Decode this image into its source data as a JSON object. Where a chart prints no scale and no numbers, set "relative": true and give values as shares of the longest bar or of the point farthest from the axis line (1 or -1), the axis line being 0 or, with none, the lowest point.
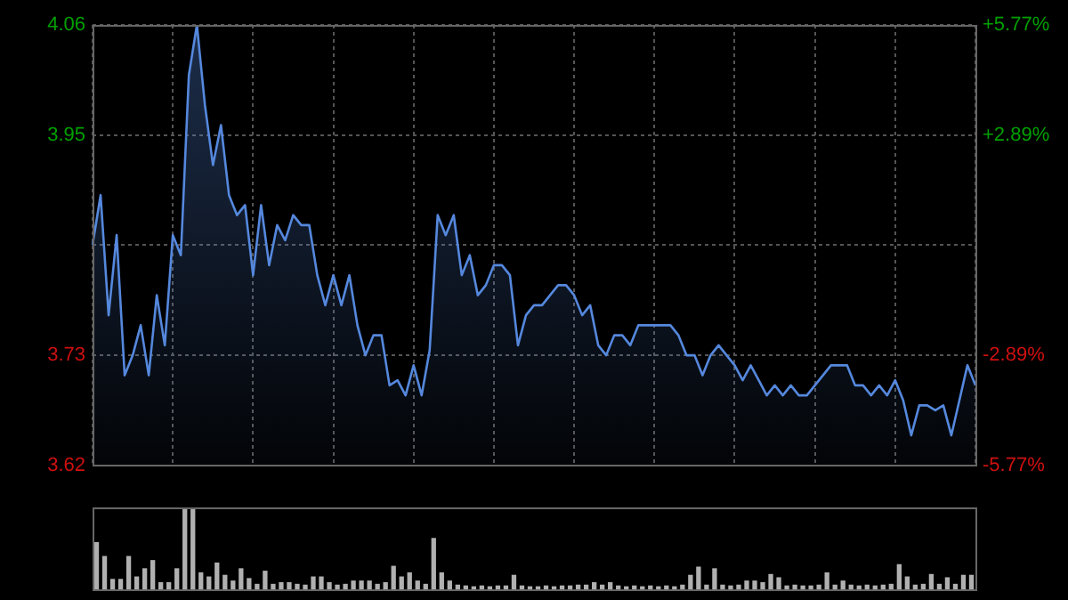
{
  "chart_data": [
    {
      "type": "area",
      "color": "#5588dd",
      "categories": [
        null,
        null,
        null,
        null,
        null,
        null,
        null,
        null,
        null,
        null,
        null,
        null,
        null,
        null,
        null,
        null,
        null,
        null,
        null,
        null,
        null,
        null,
        null,
        null,
        null,
        null,
        null,
        null,
        null,
        null,
        null,
        null,
        null,
        null,
        null,
        null,
        null,
        null,
        null,
        null,
        null,
        null,
        null,
        null,
        null,
        null,
        null,
        null,
        null,
        null,
        null,
        null,
        null,
        null,
        null,
        null,
        null,
        null,
        null,
        null,
        null,
        null,
        null,
        null,
        null,
        null,
        null,
        null,
        null,
        null,
        null,
        null,
        null,
        null,
        null,
        null,
        null,
        null,
        null,
        null,
        null,
        null,
        null,
        null,
        null,
        null,
        null,
        null,
        null,
        null,
        null,
        null,
        null,
        null,
        null,
        null,
        null,
        null,
        null,
        null,
        null,
        null,
        null,
        null,
        null,
        null,
        null,
        null,
        null,
        null,
        null
      ],
      "values": [
        3.84,
        3.89,
        3.77,
        3.85,
        3.71,
        3.73,
        3.76,
        3.71,
        3.79,
        3.74,
        3.85,
        3.83,
        4.01,
        4.06,
        3.98,
        3.92,
        3.96,
        3.89,
        3.87,
        3.88,
        3.81,
        3.88,
        3.82,
        3.86,
        3.845,
        3.87,
        3.86,
        3.86,
        3.81,
        3.78,
        3.81,
        3.78,
        3.81,
        3.76,
        3.73,
        3.75,
        3.75,
        3.7,
        3.705,
        3.69,
        3.72,
        3.69,
        3.735,
        3.87,
        3.85,
        3.87,
        3.81,
        3.83,
        3.79,
        3.8,
        3.82,
        3.82,
        3.81,
        3.74,
        3.77,
        3.78,
        3.78,
        3.79,
        3.8,
        3.8,
        3.79,
        3.77,
        3.78,
        3.74,
        3.73,
        3.75,
        3.75,
        3.74,
        3.76,
        3.76,
        3.76,
        3.76,
        3.76,
        3.75,
        3.73,
        3.73,
        3.71,
        3.73,
        3.74,
        3.73,
        3.72,
        3.705,
        3.72,
        3.705,
        3.69,
        3.7,
        3.69,
        3.7,
        3.69,
        3.69,
        3.7,
        3.71,
        3.72,
        3.72,
        3.72,
        3.7,
        3.7,
        3.69,
        3.7,
        3.69,
        3.705,
        3.685,
        3.65,
        3.68,
        3.68,
        3.675,
        3.68,
        3.65,
        3.685,
        3.72,
        3.7
      ],
      "ylim": [
        3.62,
        4.06
      ],
      "yticks": [
        3.62,
        3.73,
        {
          "value": 3.84,
          "label": null
        },
        3.95,
        4.06
      ],
      "y2lim": [
        -5.77,
        5.77
      ],
      "y2ticks": [
        {
          "value": -5.77,
          "label": "-5.77%"
        },
        {
          "value": -2.89,
          "label": "-2.89%"
        },
        {
          "value": 0,
          "label": null
        },
        {
          "value": 2.89,
          "label": "+2.89%"
        },
        {
          "value": 5.77,
          "label": "+5.77%"
        }
      ],
      "grid": true,
      "tick_labels": "y"
    },
    {
      "type": "bar",
      "relative": true,
      "color": "#b0b0b0",
      "categories": [
        null,
        null,
        null,
        null,
        null,
        null,
        null,
        null,
        null,
        null,
        null,
        null,
        null,
        null,
        null,
        null,
        null,
        null,
        null,
        null,
        null,
        null,
        null,
        null,
        null,
        null,
        null,
        null,
        null,
        null,
        null,
        null,
        null,
        null,
        null,
        null,
        null,
        null,
        null,
        null,
        null,
        null,
        null,
        null,
        null,
        null,
        null,
        null,
        null,
        null,
        null,
        null,
        null,
        null,
        null,
        null,
        null,
        null,
        null,
        null,
        null,
        null,
        null,
        null,
        null,
        null,
        null,
        null,
        null,
        null,
        null,
        null,
        null,
        null,
        null,
        null,
        null,
        null,
        null,
        null,
        null,
        null,
        null,
        null,
        null,
        null,
        null,
        null,
        null,
        null,
        null,
        null,
        null,
        null,
        null,
        null,
        null,
        null,
        null,
        null,
        null,
        null,
        null,
        null,
        null,
        null,
        null,
        null,
        null,
        null
      ],
      "values": [
        0.57,
        0.4,
        0.12,
        0.12,
        0.4,
        0.15,
        0.25,
        0.35,
        0.08,
        0.08,
        0.25,
        1,
        0.98,
        0.2,
        0.15,
        0.32,
        0.17,
        0.1,
        0.25,
        0.13,
        0.06,
        0.22,
        0.06,
        0.08,
        0.08,
        0.06,
        0.05,
        0.15,
        0.15,
        0.08,
        0.05,
        0.06,
        0.1,
        0.1,
        0.1,
        0.06,
        0.08,
        0.28,
        0.15,
        0.2,
        0.1,
        0.06,
        0.62,
        0.2,
        0.1,
        0.05,
        0.04,
        0.03,
        0.04,
        0.03,
        0.04,
        0.04,
        0.17,
        0.04,
        0.03,
        0.03,
        0.04,
        0.03,
        0.04,
        0.04,
        0.05,
        0.05,
        0.08,
        0.05,
        0.08,
        0.04,
        0.03,
        0.04,
        0.03,
        0.04,
        0.03,
        0.04,
        0.03,
        0.05,
        0.17,
        0.27,
        0.05,
        0.25,
        0.05,
        0.04,
        0.05,
        0.1,
        0.1,
        0.08,
        0.18,
        0.14,
        0.04,
        0.05,
        0.04,
        0.04,
        0.05,
        0.2,
        0.05,
        0.1,
        0.05,
        0.04,
        0.05,
        0.04,
        0.05,
        0.06,
        0.3,
        0.15,
        0.05,
        0.06,
        0.18,
        0.06,
        0.14,
        0.06,
        0.17,
        0.17
      ]
    }
  ]
}
